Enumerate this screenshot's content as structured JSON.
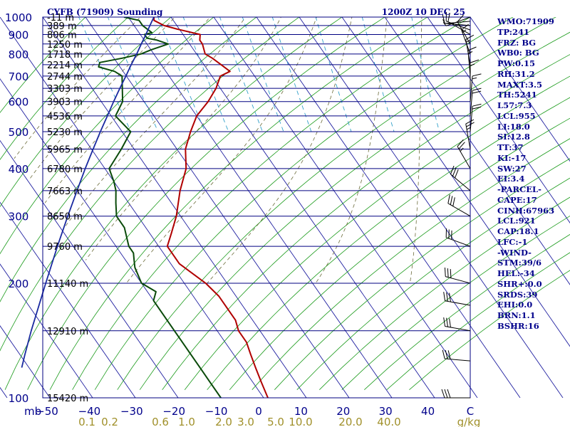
{
  "title_left": "CYFB (71909) Sounding",
  "title_right": "1200Z 10 DEC 25",
  "indices": [
    "WMO:71909",
    "TP:241",
    "FRZ: BG",
    "WB0: BG",
    "PW:0.15",
    "RH:31.2",
    "MAXT:3.5",
    "TH:5241",
    "L57:7.3",
    "LCL:955",
    "LI:18.0",
    "SI:12.8",
    "TT:37",
    "KI:-17",
    "SW:27",
    "EI:3.4",
    "-PARCEL-",
    "CAPE:17",
    "CINH:67963",
    "LCL:921",
    "CAP:18.1",
    "LFC:-1",
    "-WIND-",
    "STM:39/6",
    "HEL:-34",
    "SHR+:0.0",
    "SRDS:39",
    "EHI:0.0",
    "BRN:1.1",
    "BSHR:16"
  ],
  "colors": {
    "axis_text": "#00008b",
    "isobar": "#000080",
    "isotherm": "#1f1fa0",
    "dry_adiabat": "#1a9a1a",
    "moist_adiabat": "#6b6b3a",
    "mixing_ratio": "#33a1c9",
    "temperature": "#b00000",
    "dewpoint": "#0a4a0a",
    "parcel": "#1a2aa0",
    "mr_labels": "#a0902a"
  },
  "chart_data": {
    "type": "line",
    "diagram": "skew-T log-P",
    "pressure_unit_label": "mb",
    "temperature_unit": "C",
    "mixing_ratio_unit_label": "g/kg",
    "ylim_mb": [
      1000,
      100
    ],
    "xlim_C": [
      -50,
      50
    ],
    "pressure_ticks": [
      "100",
      "200",
      "300",
      "400",
      "500",
      "600",
      "700",
      "800",
      "900",
      "1000"
    ],
    "temperature_ticks": [
      "−50",
      "−40",
      "−30",
      "−20",
      "−10",
      "0",
      "10",
      "20",
      "30",
      "40",
      "C"
    ],
    "mixing_ratio_ticks": [
      "0.1",
      "0.2",
      "0.6",
      "1.0",
      "2.0",
      "3.0",
      "5.0",
      "10.0",
      "20.0",
      "40.0",
      "g/kg"
    ],
    "height_labels": [
      {
        "p": 100,
        "label": "15420 m"
      },
      {
        "p": 150,
        "label": "12910 m"
      },
      {
        "p": 200,
        "label": "11140 m"
      },
      {
        "p": 250,
        "label": "9760 m"
      },
      {
        "p": 300,
        "label": "8650 m"
      },
      {
        "p": 350,
        "label": "7663 m"
      },
      {
        "p": 400,
        "label": "6780 m"
      },
      {
        "p": 450,
        "label": "5965 m"
      },
      {
        "p": 500,
        "label": "5230 m"
      },
      {
        "p": 550,
        "label": "4536 m"
      },
      {
        "p": 600,
        "label": "3903 m"
      },
      {
        "p": 650,
        "label": "3303 m"
      },
      {
        "p": 700,
        "label": "2744 m"
      },
      {
        "p": 750,
        "label": "2214 m"
      },
      {
        "p": 800,
        "label": "1718 m"
      },
      {
        "p": 850,
        "label": "1250 m"
      },
      {
        "p": 900,
        "label": "806 m"
      },
      {
        "p": 950,
        "label": "389 m"
      },
      {
        "p": 1000,
        "label": "-11 m"
      }
    ],
    "series": [
      {
        "key": "temperature",
        "points": [
          [
            1000,
            -24
          ],
          [
            980,
            -24.5
          ],
          [
            950,
            -23
          ],
          [
            930,
            -20.5
          ],
          [
            900,
            -16
          ],
          [
            870,
            -17
          ],
          [
            850,
            -17
          ],
          [
            800,
            -18
          ],
          [
            780,
            -17
          ],
          [
            750,
            -16
          ],
          [
            720,
            -15
          ],
          [
            700,
            -18
          ],
          [
            650,
            -21
          ],
          [
            600,
            -25
          ],
          [
            550,
            -30
          ],
          [
            500,
            -34
          ],
          [
            450,
            -38
          ],
          [
            400,
            -41
          ],
          [
            350,
            -46
          ],
          [
            300,
            -51
          ],
          [
            270,
            -55
          ],
          [
            250,
            -58
          ],
          [
            225,
            -58
          ],
          [
            200,
            -55
          ],
          [
            185,
            -54
          ],
          [
            170,
            -54
          ],
          [
            160,
            -54
          ],
          [
            150,
            -55
          ],
          [
            140,
            -55
          ],
          [
            130,
            -56
          ],
          [
            120,
            -57
          ],
          [
            110,
            -58
          ],
          [
            100,
            -59
          ]
        ]
      },
      {
        "key": "dewpoint",
        "points": [
          [
            1000,
            -31
          ],
          [
            980,
            -28
          ],
          [
            950,
            -28
          ],
          [
            930,
            -27.5
          ],
          [
            910,
            -27
          ],
          [
            900,
            -29
          ],
          [
            880,
            -29
          ],
          [
            870,
            -27
          ],
          [
            850,
            -25
          ],
          [
            820,
            -30
          ],
          [
            800,
            -33
          ],
          [
            780,
            -38
          ],
          [
            760,
            -44
          ],
          [
            740,
            -45
          ],
          [
            720,
            -42
          ],
          [
            700,
            -41
          ],
          [
            600,
            -45
          ],
          [
            550,
            -49
          ],
          [
            500,
            -48
          ],
          [
            450,
            -53
          ],
          [
            400,
            -59
          ],
          [
            370,
            -60
          ],
          [
            350,
            -61
          ],
          [
            325,
            -63
          ],
          [
            300,
            -65
          ],
          [
            280,
            -65
          ],
          [
            250,
            -67
          ],
          [
            240,
            -67
          ],
          [
            230,
            -68
          ],
          [
            220,
            -69
          ],
          [
            200,
            -70
          ],
          [
            190,
            -68
          ],
          [
            180,
            -70
          ],
          [
            150,
            -70
          ],
          [
            140,
            -70
          ],
          [
            120,
            -70
          ],
          [
            110,
            -70
          ],
          [
            100,
            -70
          ]
        ]
      },
      {
        "key": "parcel",
        "points": [
          [
            1000,
            -24
          ],
          [
            950,
            -26.3
          ],
          [
            900,
            -28.7
          ],
          [
            850,
            -31.3
          ],
          [
            800,
            -34
          ],
          [
            750,
            -37
          ],
          [
            700,
            -40.1
          ],
          [
            650,
            -43.5
          ],
          [
            600,
            -47.1
          ],
          [
            550,
            -50.9
          ],
          [
            500,
            -55.1
          ],
          [
            450,
            -59.6
          ],
          [
            400,
            -64.6
          ],
          [
            350,
            -70.1
          ],
          [
            300,
            -76.4
          ],
          [
            250,
            -83.7
          ],
          [
            200,
            -92.4
          ],
          [
            150,
            -103.5
          ],
          [
            130,
            -108.8
          ],
          [
            120,
            -111.7
          ]
        ]
      }
    ],
    "wind_barbs": [
      {
        "p": 1000,
        "dir": 250,
        "spd": 5
      },
      {
        "p": 975,
        "dir": 265,
        "spd": 5
      },
      {
        "p": 950,
        "dir": 275,
        "spd": 10
      },
      {
        "p": 925,
        "dir": 290,
        "spd": 10
      },
      {
        "p": 900,
        "dir": 300,
        "spd": 10
      },
      {
        "p": 850,
        "dir": 330,
        "spd": 10
      },
      {
        "p": 800,
        "dir": 340,
        "spd": 15
      },
      {
        "p": 750,
        "dir": 350,
        "spd": 15
      },
      {
        "p": 700,
        "dir": 355,
        "spd": 15
      },
      {
        "p": 650,
        "dir": 0,
        "spd": 15
      },
      {
        "p": 600,
        "dir": 5,
        "spd": 15
      },
      {
        "p": 550,
        "dir": 5,
        "spd": 20
      },
      {
        "p": 500,
        "dir": 5,
        "spd": 20
      },
      {
        "p": 450,
        "dir": 350,
        "spd": 25
      },
      {
        "p": 400,
        "dir": 330,
        "spd": 25
      },
      {
        "p": 350,
        "dir": 310,
        "spd": 30
      },
      {
        "p": 300,
        "dir": 300,
        "spd": 30
      },
      {
        "p": 250,
        "dir": 290,
        "spd": 30
      },
      {
        "p": 200,
        "dir": 285,
        "spd": 30
      },
      {
        "p": 175,
        "dir": 280,
        "spd": 30
      },
      {
        "p": 150,
        "dir": 280,
        "spd": 30
      },
      {
        "p": 125,
        "dir": 275,
        "spd": 30
      },
      {
        "p": 100,
        "dir": 270,
        "spd": 30
      }
    ]
  }
}
